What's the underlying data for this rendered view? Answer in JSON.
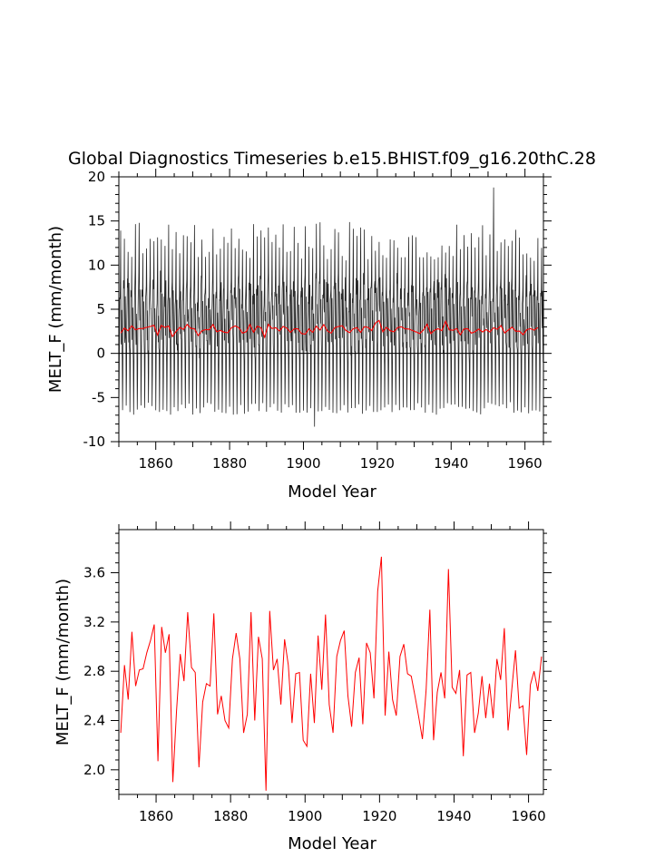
{
  "figure": {
    "title": "Global Diagnostics Timeseries b.e15.BHIST.f09_g16.20thC.28"
  },
  "chart_data": [
    {
      "type": "line",
      "title": "Global Diagnostics Timeseries b.e15.BHIST.f09_g16.20thC.28",
      "xlabel": "Model Year",
      "ylabel": "MELT_F (mm/month)",
      "xlim": [
        1850,
        1965
      ],
      "ylim": [
        -10,
        20
      ],
      "xticks": [
        "1860",
        "1880",
        "1900",
        "1920",
        "1940",
        "1960"
      ],
      "yticks": [
        "-10",
        "-5",
        "0",
        "5",
        "10",
        "15",
        "20"
      ],
      "zero_line": true,
      "series": [
        {
          "kind": "monthly",
          "color": "#000000",
          "start_year": 1850,
          "end_year": 1965,
          "seasonal_cycle_typical_min": -6.5,
          "seasonal_cycle_typical_max": 14.5,
          "overall_max": 18.8,
          "overall_min": -8.3
        },
        {
          "kind": "annual_mean",
          "color": "#ff0000",
          "values_ref": "annual_mean"
        }
      ]
    },
    {
      "type": "line",
      "title": "",
      "xlabel": "Model Year",
      "ylabel": "MELT_F (mm/month)",
      "xlim": [
        1850,
        1964
      ],
      "ylim": [
        1.8,
        3.95
      ],
      "xticks": [
        "1860",
        "1880",
        "1900",
        "1920",
        "1940",
        "1960"
      ],
      "yticks": [
        "2.0",
        "2.4",
        "2.8",
        "3.2",
        "3.6"
      ],
      "series": [
        {
          "color": "#ff0000",
          "values_ref": "annual_mean"
        }
      ]
    }
  ],
  "annual_mean": {
    "x_start": 1850,
    "values": [
      2.3,
      2.85,
      2.57,
      3.12,
      2.68,
      2.81,
      2.82,
      2.95,
      3.05,
      3.18,
      2.07,
      3.16,
      2.95,
      3.1,
      1.9,
      2.48,
      2.94,
      2.72,
      3.28,
      2.83,
      2.79,
      2.02,
      2.55,
      2.7,
      2.68,
      3.27,
      2.45,
      2.6,
      2.4,
      2.34,
      2.9,
      3.11,
      2.9,
      2.3,
      2.45,
      3.28,
      2.4,
      3.08,
      2.9,
      1.83,
      3.29,
      2.81,
      2.9,
      2.53,
      3.06,
      2.85,
      2.38,
      2.78,
      2.79,
      2.24,
      2.19,
      2.78,
      2.38,
      3.09,
      2.65,
      3.26,
      2.53,
      2.3,
      2.92,
      3.05,
      3.13,
      2.6,
      2.35,
      2.79,
      2.91,
      2.37,
      3.03,
      2.95,
      2.58,
      3.45,
      3.73,
      2.44,
      2.96,
      2.57,
      2.44,
      2.92,
      3.02,
      2.78,
      2.76,
      2.6,
      2.43,
      2.25,
      2.65,
      3.3,
      2.24,
      2.63,
      2.79,
      2.58,
      3.63,
      2.67,
      2.62,
      2.81,
      2.11,
      2.77,
      2.79,
      2.3,
      2.46,
      2.76,
      2.42,
      2.7,
      2.42,
      2.9,
      2.73,
      3.15,
      2.32,
      2.65,
      2.97,
      2.5,
      2.52,
      2.12,
      2.69,
      2.8,
      2.64,
      2.92
    ]
  }
}
